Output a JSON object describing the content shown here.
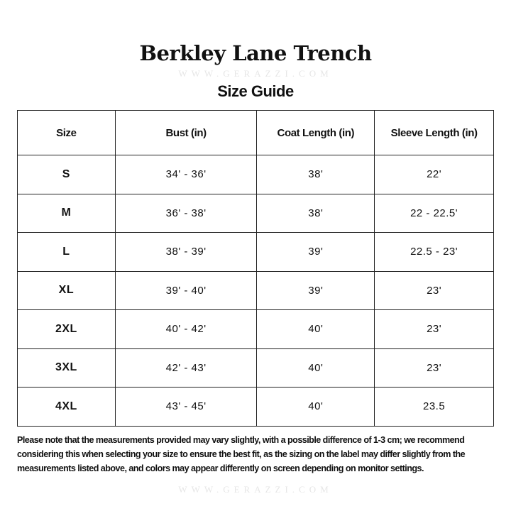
{
  "title": "Berkley Lane Trench",
  "subtitle": "Size Guide",
  "watermark": "WWW.GERAZZI.COM",
  "table": {
    "headers": [
      "Size",
      "Bust (in)",
      "Coat Length (in)",
      "Sleeve Length (in)"
    ],
    "rows": [
      [
        "S",
        "34' - 36'",
        "38'",
        "22'"
      ],
      [
        "M",
        "36' - 38'",
        "38'",
        "22 - 22.5'"
      ],
      [
        "L",
        "38' - 39'",
        "39'",
        "22.5 - 23'"
      ],
      [
        "XL",
        "39' - 40'",
        "39'",
        "23'"
      ],
      [
        "2XL",
        "40' - 42'",
        "40'",
        "23'"
      ],
      [
        "3XL",
        "42' - 43'",
        "40'",
        "23'"
      ],
      [
        "4XL",
        "43' - 45'",
        "40'",
        "23.5"
      ]
    ]
  },
  "note": "Please note that the measurements provided may vary slightly, with a possible difference of 1-3 cm; we recommend considering this when selecting your size to ensure the best fit, as the sizing on the label may differ slightly from the measurements listed above, and colors may appear differently on screen depending on monitor settings."
}
